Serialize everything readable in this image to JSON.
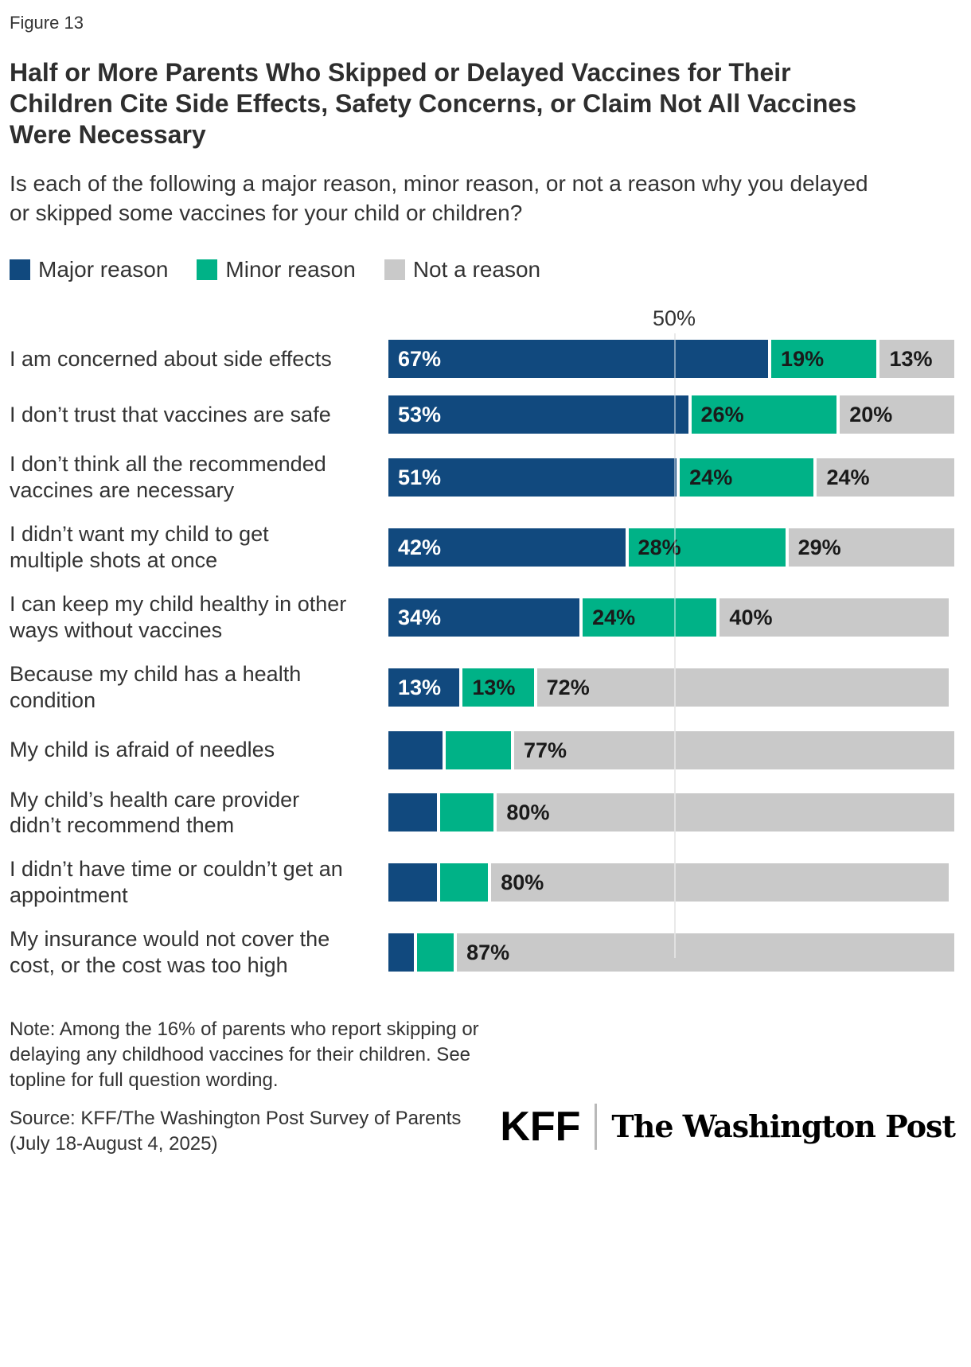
{
  "figure_label": "Figure 13",
  "title": "Half or More Parents Who Skipped or Delayed Vaccines for Their Children Cite Side Effects, Safety Concerns, or Claim Not All Vaccines Were Necessary",
  "subtitle": "Is each of the following a major reason, minor reason, or not a reason why you delayed or skipped some vaccines for your child or children?",
  "legend": [
    {
      "label": "Major reason",
      "color": "#11497e"
    },
    {
      "label": "Minor reason",
      "color": "#00b287"
    },
    {
      "label": "Not a reason",
      "color": "#c9c9c9"
    }
  ],
  "chart_data": {
    "type": "bar",
    "orientation": "horizontal",
    "stacked": true,
    "unit": "%",
    "xmax": 100,
    "grid": "single vertical gridline at 50%",
    "gridline": {
      "value": 50,
      "label": "50%"
    },
    "legend_position": "top-left",
    "colors": {
      "major": "#11497e",
      "minor": "#00b287",
      "not_a_reason": "#c9c9c9"
    },
    "series_names": [
      "Major reason",
      "Minor reason",
      "Not a reason"
    ],
    "rows": [
      {
        "category": "I am concerned about side effects",
        "major": 67,
        "minor": 19,
        "not_a_reason": 13,
        "labels": {
          "major": "67%",
          "minor": "19%",
          "not_a_reason": "13%"
        }
      },
      {
        "category": "I don’t trust that vaccines are safe",
        "major": 53,
        "minor": 26,
        "not_a_reason": 20,
        "labels": {
          "major": "53%",
          "minor": "26%",
          "not_a_reason": "20%"
        }
      },
      {
        "category": "I don’t think all the recommended vaccines are necessary",
        "major": 51,
        "minor": 24,
        "not_a_reason": 24,
        "labels": {
          "major": "51%",
          "minor": "24%",
          "not_a_reason": "24%"
        }
      },
      {
        "category": "I didn’t want my child to get multiple shots at once",
        "major": 42,
        "minor": 28,
        "not_a_reason": 29,
        "labels": {
          "major": "42%",
          "minor": "28%",
          "not_a_reason": "29%"
        }
      },
      {
        "category": "I can keep my child healthy in other ways without vaccines",
        "major": 34,
        "minor": 24,
        "not_a_reason": 40,
        "labels": {
          "major": "34%",
          "minor": "24%",
          "not_a_reason": "40%"
        }
      },
      {
        "category": "Because my child has a health condition",
        "major": 13,
        "minor": 13,
        "not_a_reason": 72,
        "labels": {
          "major": "13%",
          "minor": "13%",
          "not_a_reason": "72%"
        }
      },
      {
        "category": "My child is afraid of needles",
        "major": 10,
        "minor": 12,
        "not_a_reason": 77,
        "labels": {
          "major": "",
          "minor": "",
          "not_a_reason": "77%"
        }
      },
      {
        "category": "My child’s health care provider didn’t recommend them",
        "major": 9,
        "minor": 10,
        "not_a_reason": 80,
        "labels": {
          "major": "",
          "minor": "",
          "not_a_reason": "80%"
        }
      },
      {
        "category": "I didn’t have time or couldn’t get an appointment",
        "major": 9,
        "minor": 9,
        "not_a_reason": 80,
        "labels": {
          "major": "",
          "minor": "",
          "not_a_reason": "80%"
        }
      },
      {
        "category": "My insurance would not cover the cost, or the cost was too high",
        "major": 5,
        "minor": 7,
        "not_a_reason": 87,
        "labels": {
          "major": "",
          "minor": "",
          "not_a_reason": "87%"
        }
      }
    ]
  },
  "note": "Note: Among the 16% of parents who report skipping or delaying any childhood vaccines for their children. See topline for full question wording.",
  "source": "Source: KFF/The Washington Post Survey of Parents (July 18-August 4, 2025)",
  "logos": {
    "kff": "KFF",
    "washington_post": "The Washington Post"
  }
}
